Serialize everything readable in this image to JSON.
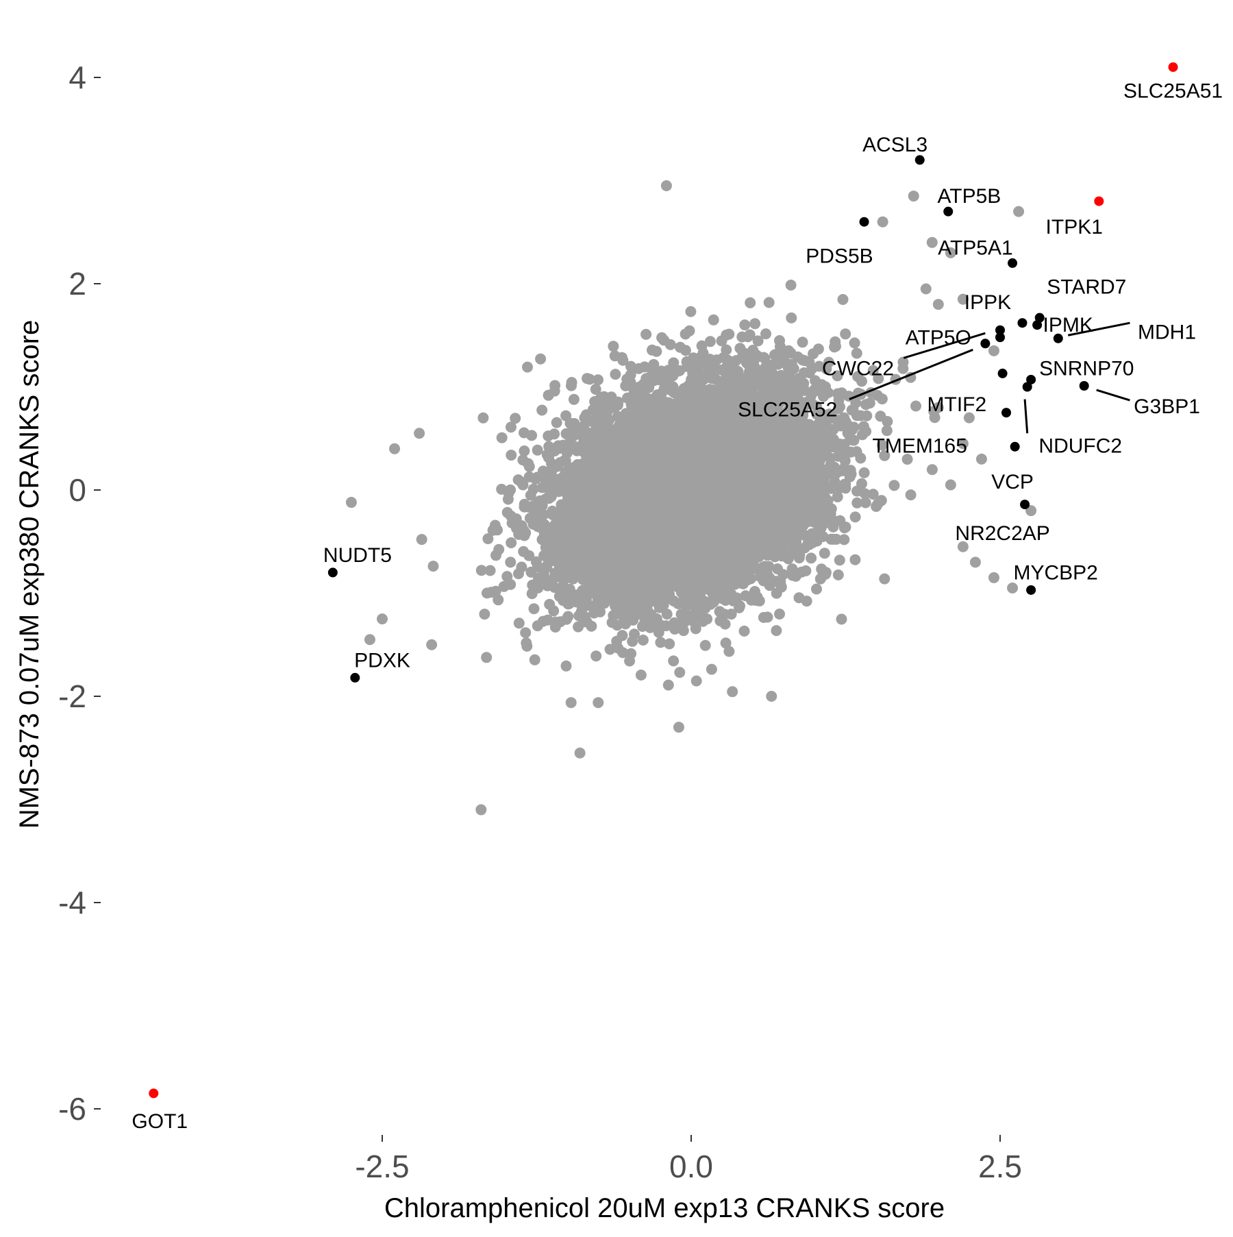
{
  "chart_data": {
    "type": "scatter",
    "xlabel": "Chloramphenicol 20uM exp13 CRANKS score",
    "ylabel": "NMS-873 0.07uM exp380 CRANKS score",
    "xlim": [
      -4.4,
      4.4
    ],
    "ylim": [
      -6.2,
      4.4
    ],
    "x_ticks": [
      {
        "value": -2.5,
        "label": "-2.5"
      },
      {
        "value": 0.0,
        "label": "0.0"
      },
      {
        "value": 2.5,
        "label": "2.5"
      }
    ],
    "y_ticks": [
      {
        "value": 4,
        "label": "4"
      },
      {
        "value": 2,
        "label": "2"
      },
      {
        "value": 0,
        "label": "0"
      },
      {
        "value": -2,
        "label": "-2"
      },
      {
        "value": -4,
        "label": "-4"
      },
      {
        "value": -6,
        "label": "-6"
      }
    ],
    "grid": false,
    "colors": {
      "background": "#ffffff",
      "bulk": "#a0a0a0",
      "highlight": "#000000",
      "top_hit": "#ff0000"
    },
    "background_cloud": {
      "description_color": "#a0a0a0",
      "n_points": 7000,
      "center": [
        0.0,
        0.0
      ],
      "sd": [
        0.55,
        0.55
      ],
      "correlation": 0.3,
      "x_range": [
        -2.8,
        2.8
      ],
      "y_range": [
        -3.1,
        3.0
      ]
    },
    "outliers": [
      {
        "x": -2.75,
        "y": -0.12
      },
      {
        "x": -2.6,
        "y": -1.45
      },
      {
        "x": -2.5,
        "y": -1.25
      },
      {
        "x": -2.4,
        "y": 0.4
      },
      {
        "x": -2.2,
        "y": 0.55
      },
      {
        "x": -2.1,
        "y": -1.5
      },
      {
        "x": -1.7,
        "y": -3.1
      },
      {
        "x": -0.2,
        "y": 2.95
      },
      {
        "x": -0.9,
        "y": -2.55
      },
      {
        "x": -0.1,
        "y": -2.3
      },
      {
        "x": 0.65,
        "y": -2.0
      },
      {
        "x": 1.55,
        "y": 2.6
      },
      {
        "x": 1.8,
        "y": 2.85
      },
      {
        "x": 2.65,
        "y": 2.7
      },
      {
        "x": 2.2,
        "y": -0.55
      },
      {
        "x": 2.3,
        "y": -0.7
      },
      {
        "x": 2.45,
        "y": -0.85
      },
      {
        "x": 2.6,
        "y": -0.95
      },
      {
        "x": 2.75,
        "y": -0.2
      },
      {
        "x": 2.1,
        "y": 0.05
      },
      {
        "x": 2.2,
        "y": 1.85
      },
      {
        "x": 2.0,
        "y": 1.8
      },
      {
        "x": 1.9,
        "y": 1.95
      },
      {
        "x": 1.95,
        "y": 2.4
      },
      {
        "x": 2.1,
        "y": 2.3
      },
      {
        "x": 2.45,
        "y": 1.35
      },
      {
        "x": 2.2,
        "y": 0.45
      },
      {
        "x": 2.25,
        "y": 0.7
      },
      {
        "x": 2.35,
        "y": 0.3
      },
      {
        "x": 2.0,
        "y": 0.8
      }
    ],
    "labeled_points": [
      {
        "label": "SLC25A51",
        "x": 3.9,
        "y": 4.1,
        "color": "#ff0000",
        "lx": 3.9,
        "ly": 3.87,
        "anchor": "middle"
      },
      {
        "label": "ITPK1",
        "x": 3.3,
        "y": 2.8,
        "color": "#ff0000",
        "lx": 3.1,
        "ly": 2.55,
        "anchor": "middle"
      },
      {
        "label": "GOT1",
        "x": -4.35,
        "y": -5.85,
        "color": "#ff0000",
        "lx": -4.3,
        "ly": -6.12,
        "anchor": "middle"
      },
      {
        "label": "ACSL3",
        "x": 1.85,
        "y": 3.2,
        "color": "#000000",
        "lx": 1.65,
        "ly": 3.35,
        "anchor": "middle"
      },
      {
        "label": "ATP5B",
        "x": 2.08,
        "y": 2.7,
        "color": "#000000",
        "lx": 2.25,
        "ly": 2.85,
        "anchor": "middle"
      },
      {
        "label": "PDS5B",
        "x": 1.4,
        "y": 2.6,
        "color": "#000000",
        "lx": 1.2,
        "ly": 2.27,
        "anchor": "middle"
      },
      {
        "label": "ATP5A1",
        "x": 2.6,
        "y": 2.2,
        "color": "#000000",
        "lx": 2.3,
        "ly": 2.35,
        "anchor": "middle"
      },
      {
        "label": "STARD7",
        "x": 2.82,
        "y": 1.67,
        "color": "#000000",
        "lx": 3.2,
        "ly": 1.97,
        "anchor": "middle"
      },
      {
        "label": "IPPK",
        "x": 2.68,
        "y": 1.62,
        "color": "#000000",
        "lx": 2.4,
        "ly": 1.82,
        "anchor": "middle"
      },
      {
        "label": "IPMK",
        "x": 2.8,
        "y": 1.6,
        "color": "#000000",
        "lx": 3.05,
        "ly": 1.6,
        "anchor": "middle"
      },
      {
        "label": "MDH1",
        "x": 2.97,
        "y": 1.47,
        "color": "#000000",
        "lx": 3.85,
        "ly": 1.53,
        "anchor": "middle",
        "leader": [
          [
            3.05,
            1.5
          ],
          [
            3.55,
            1.62
          ]
        ]
      },
      {
        "label": "ATP5O",
        "x": 2.5,
        "y": 1.55,
        "color": "#000000",
        "lx": 2.0,
        "ly": 1.48,
        "anchor": "middle"
      },
      {
        "label": "CWC22",
        "x": 2.5,
        "y": 1.48,
        "color": "#000000",
        "lx": 1.35,
        "ly": 1.18,
        "anchor": "middle",
        "leader": [
          [
            1.72,
            1.28
          ],
          [
            2.38,
            1.52
          ]
        ]
      },
      {
        "label": "SLC25A52",
        "x": 2.38,
        "y": 1.42,
        "color": "#000000",
        "lx": 0.78,
        "ly": 0.78,
        "anchor": "middle",
        "leader": [
          [
            1.28,
            0.88
          ],
          [
            2.28,
            1.36
          ]
        ]
      },
      {
        "label": "SNRNP70",
        "x": 2.52,
        "y": 1.13,
        "color": "#000000",
        "lx": 3.2,
        "ly": 1.18,
        "anchor": "middle"
      },
      {
        "label": "G3BP1",
        "x": 3.18,
        "y": 1.01,
        "color": "#000000",
        "lx": 3.85,
        "ly": 0.81,
        "anchor": "middle",
        "leader": [
          [
            3.28,
            0.97
          ],
          [
            3.55,
            0.87
          ]
        ]
      },
      {
        "label": "MTIF2",
        "x": 2.72,
        "y": 1.0,
        "color": "#000000",
        "lx": 2.15,
        "ly": 0.83,
        "anchor": "middle"
      },
      {
        "label": "NDUFC2",
        "x": 2.75,
        "y": 1.07,
        "color": "#000000",
        "lx": 3.15,
        "ly": 0.43,
        "anchor": "middle",
        "leader": [
          [
            2.7,
            0.88
          ],
          [
            2.72,
            0.55
          ]
        ]
      },
      {
        "label": "TMEM165",
        "x": 2.55,
        "y": 0.75,
        "color": "#000000",
        "lx": 1.85,
        "ly": 0.43,
        "anchor": "middle"
      },
      {
        "label": "VCP",
        "x": 2.62,
        "y": 0.42,
        "color": "#000000",
        "lx": 2.6,
        "ly": 0.08,
        "anchor": "middle"
      },
      {
        "label": "NR2C2AP",
        "x": 2.7,
        "y": -0.14,
        "color": "#000000",
        "lx": 2.52,
        "ly": -0.42,
        "anchor": "middle"
      },
      {
        "label": "MYCBP2",
        "x": 2.75,
        "y": -0.97,
        "color": "#000000",
        "lx": 2.95,
        "ly": -0.8,
        "anchor": "middle"
      },
      {
        "label": "NUDT5",
        "x": -2.9,
        "y": -0.8,
        "color": "#000000",
        "lx": -2.7,
        "ly": -0.63,
        "anchor": "middle"
      },
      {
        "label": "PDXK",
        "x": -2.72,
        "y": -1.82,
        "color": "#000000",
        "lx": -2.5,
        "ly": -1.65,
        "anchor": "middle"
      }
    ]
  }
}
